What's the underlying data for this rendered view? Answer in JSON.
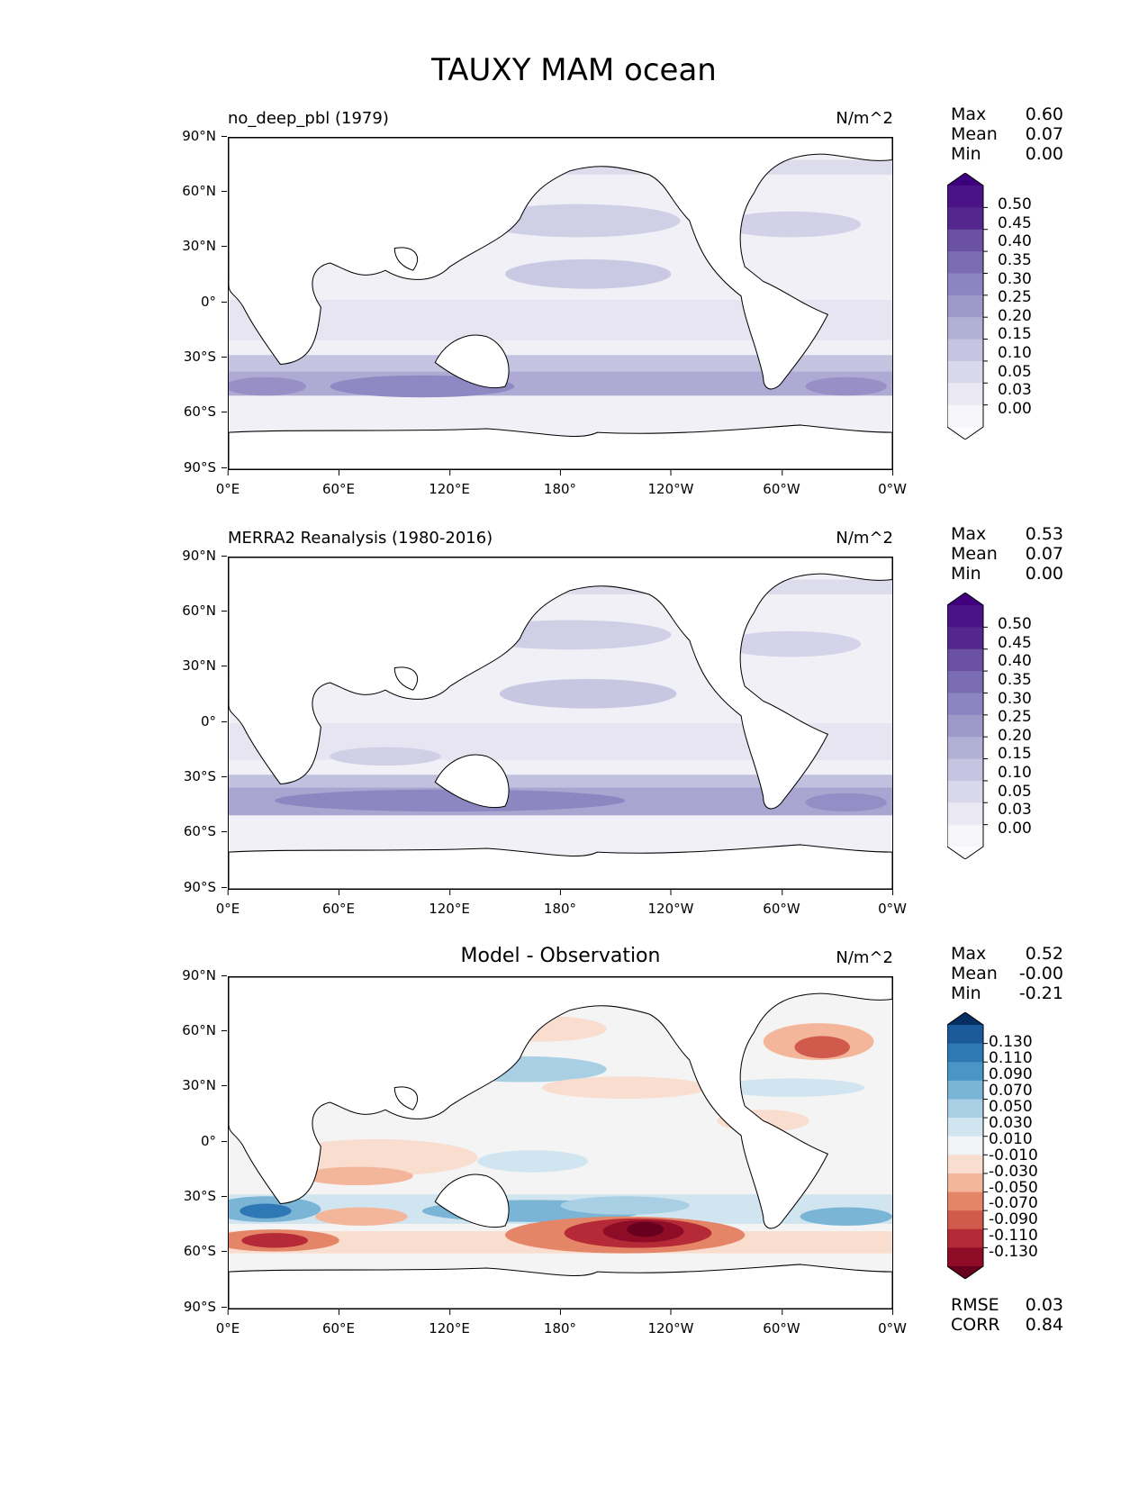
{
  "figure": {
    "title": "TAUXY MAM ocean"
  },
  "axes": {
    "lat_labels": [
      "90°N",
      "60°N",
      "30°N",
      "0°",
      "30°S",
      "60°S",
      "90°S"
    ],
    "lon_labels": [
      "0°E",
      "60°E",
      "120°E",
      "180°",
      "120°W",
      "60°W",
      "0°W"
    ]
  },
  "panels": [
    {
      "title": "no_deep_pbl (1979)",
      "units": "N/m^2",
      "stats": [
        {
          "label": "Max",
          "value": "0.60"
        },
        {
          "label": "Mean",
          "value": "0.07"
        },
        {
          "label": "Min",
          "value": "0.00"
        }
      ],
      "colorbar": {
        "labels": [
          "0.50",
          "0.45",
          "0.40",
          "0.35",
          "0.30",
          "0.25",
          "0.20",
          "0.15",
          "0.10",
          "0.05",
          "0.03",
          "0.00"
        ],
        "colors": [
          "#3f007d",
          "#4a1486",
          "#54278f",
          "#6a51a3",
          "#7b6db3",
          "#8b85c1",
          "#9e9ac8",
          "#b1b0d5",
          "#c5c5e1",
          "#d9d8ea",
          "#eae9f3",
          "#f6f5fa",
          "#fcfbfd"
        ]
      }
    },
    {
      "title": "MERRA2 Reanalysis (1980-2016)",
      "units": "N/m^2",
      "stats": [
        {
          "label": "Max",
          "value": "0.53"
        },
        {
          "label": "Mean",
          "value": "0.07"
        },
        {
          "label": "Min",
          "value": "0.00"
        }
      ],
      "colorbar": {
        "labels": [
          "0.50",
          "0.45",
          "0.40",
          "0.35",
          "0.30",
          "0.25",
          "0.20",
          "0.15",
          "0.10",
          "0.05",
          "0.03",
          "0.00"
        ],
        "colors": [
          "#3f007d",
          "#4a1486",
          "#54278f",
          "#6a51a3",
          "#7b6db3",
          "#8b85c1",
          "#9e9ac8",
          "#b1b0d5",
          "#c5c5e1",
          "#d9d8ea",
          "#eae9f3",
          "#f6f5fa",
          "#fcfbfd"
        ]
      }
    },
    {
      "title": "Model - Observation",
      "units": "N/m^2",
      "stats": [
        {
          "label": "Max",
          "value": "0.52"
        },
        {
          "label": "Mean",
          "value": "-0.00"
        },
        {
          "label": "Min",
          "value": "-0.21"
        }
      ],
      "extra_stats": [
        {
          "label": "RMSE",
          "value": "0.03"
        },
        {
          "label": "CORR",
          "value": "0.84"
        }
      ],
      "colorbar": {
        "labels": [
          "0.130",
          "0.110",
          "0.090",
          "0.070",
          "0.050",
          "0.030",
          "0.010",
          "-0.010",
          "-0.030",
          "-0.050",
          "-0.070",
          "-0.090",
          "-0.110",
          "-0.130"
        ],
        "colors": [
          "#053061",
          "#1b5a9a",
          "#2f78b6",
          "#4a95c6",
          "#7ab5d6",
          "#a8cfe4",
          "#d1e5f0",
          "#f0f4f7",
          "#f9ddcf",
          "#f4b69a",
          "#e58568",
          "#d05a4b",
          "#b52a36",
          "#8e0c25",
          "#67001f"
        ]
      }
    }
  ]
}
